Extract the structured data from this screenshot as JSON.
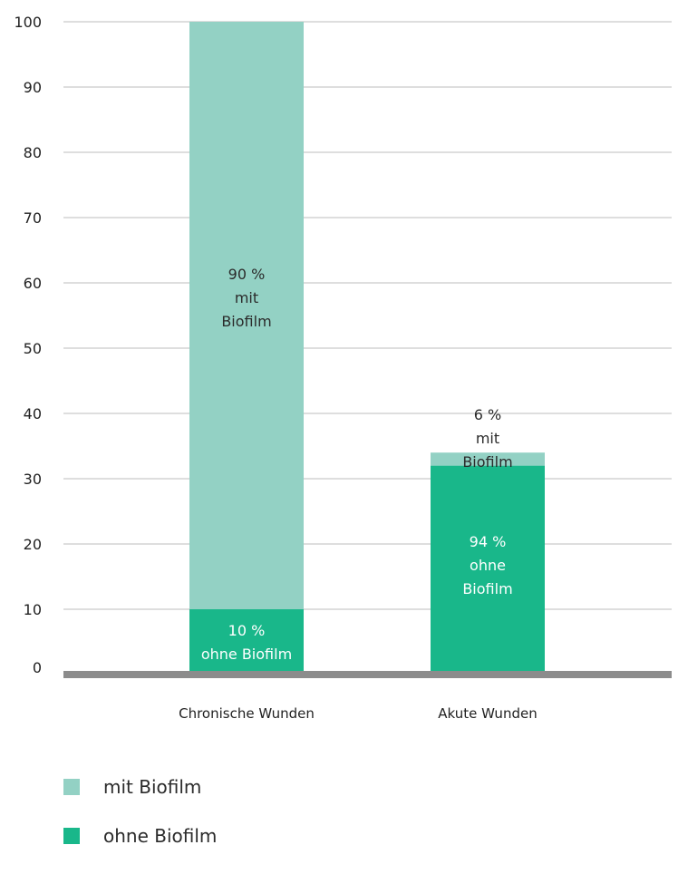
{
  "chart_data": {
    "type": "bar",
    "stacked": true,
    "categories": [
      "Chronische Wunden",
      "Akute Wunden"
    ],
    "series": [
      {
        "name": "ohne Biofilm",
        "values": [
          10,
          32
        ],
        "color": "#19b78a"
      },
      {
        "name": "mit Biofilm",
        "values": [
          90,
          2
        ],
        "color": "#93d1c4"
      }
    ],
    "segment_labels": [
      {
        "category": "Chronische Wunden",
        "series": "mit Biofilm",
        "lines": [
          "90 %",
          "mit",
          "Biofilm"
        ],
        "color": "#2b2b2b"
      },
      {
        "category": "Chronische Wunden",
        "series": "ohne Biofilm",
        "lines": [
          "10 %",
          "ohne Biofilm"
        ],
        "color": "#ffffff"
      },
      {
        "category": "Akute Wunden",
        "series": "mit Biofilm",
        "lines": [
          "6 %",
          "mit",
          "Biofilm"
        ],
        "color": "#2b2b2b"
      },
      {
        "category": "Akute Wunden",
        "series": "ohne Biofilm",
        "lines": [
          "94 %",
          "ohne",
          "Biofilm"
        ],
        "color": "#ffffff"
      }
    ],
    "ylim": [
      0,
      100
    ],
    "yticks": [
      0,
      10,
      20,
      30,
      40,
      50,
      60,
      70,
      80,
      90,
      100
    ],
    "grid": true,
    "baseline_color": "#8c8c8c",
    "legend_position": "bottom-left"
  },
  "legend": {
    "items": [
      {
        "label": "mit Biofilm",
        "color": "#93d1c4"
      },
      {
        "label": "ohne Biofilm",
        "color": "#19b78a"
      }
    ]
  }
}
